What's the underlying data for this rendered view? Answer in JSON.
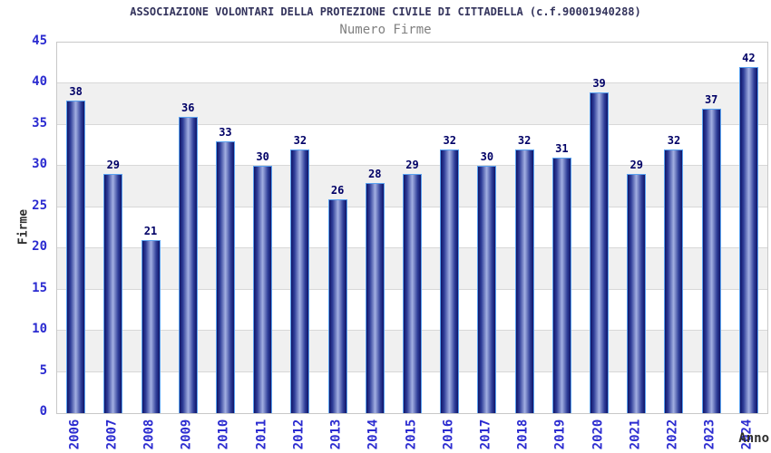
{
  "header": {
    "title": "ASSOCIAZIONE VOLONTARI DELLA PROTEZIONE CIVILE DI CITTADELLA (c.f.90001940288)",
    "subtitle": "Numero Firme"
  },
  "axes": {
    "y_title": "Firme",
    "x_title": "Anno"
  },
  "chart_data": {
    "type": "bar",
    "title": "ASSOCIAZIONE VOLONTARI DELLA PROTEZIONE CIVILE DI CITTADELLA (c.f.90001940288)",
    "subtitle": "Numero Firme",
    "xlabel": "Anno",
    "ylabel": "Firme",
    "categories": [
      "2006",
      "2007",
      "2008",
      "2009",
      "2010",
      "2011",
      "2012",
      "2013",
      "2014",
      "2015",
      "2016",
      "2017",
      "2018",
      "2019",
      "2020",
      "2021",
      "2022",
      "2023",
      "2024"
    ],
    "values": [
      38,
      29,
      21,
      36,
      33,
      30,
      32,
      26,
      28,
      29,
      32,
      30,
      32,
      31,
      39,
      29,
      32,
      37,
      42
    ],
    "ylim": [
      0,
      45
    ],
    "yticks": [
      0,
      5,
      10,
      15,
      20,
      25,
      30,
      35,
      40,
      45
    ],
    "grid": true,
    "banded_background": true,
    "bar_value_labels": true,
    "legend": false
  },
  "colors": {
    "title": "#33335c",
    "subtitle": "#808080",
    "tick": "#2b2bd0",
    "value": "#000066",
    "axis_title": "#2e2e2e",
    "band": "#f0f0f0",
    "grid": "#d8d8d8",
    "border": "#c8c8c8",
    "bar_outline": "#5aa2f0",
    "bar_gradient": [
      "#0f1468",
      "#31409a",
      "#a3b0e2",
      "#31409a",
      "#0f1468"
    ]
  }
}
